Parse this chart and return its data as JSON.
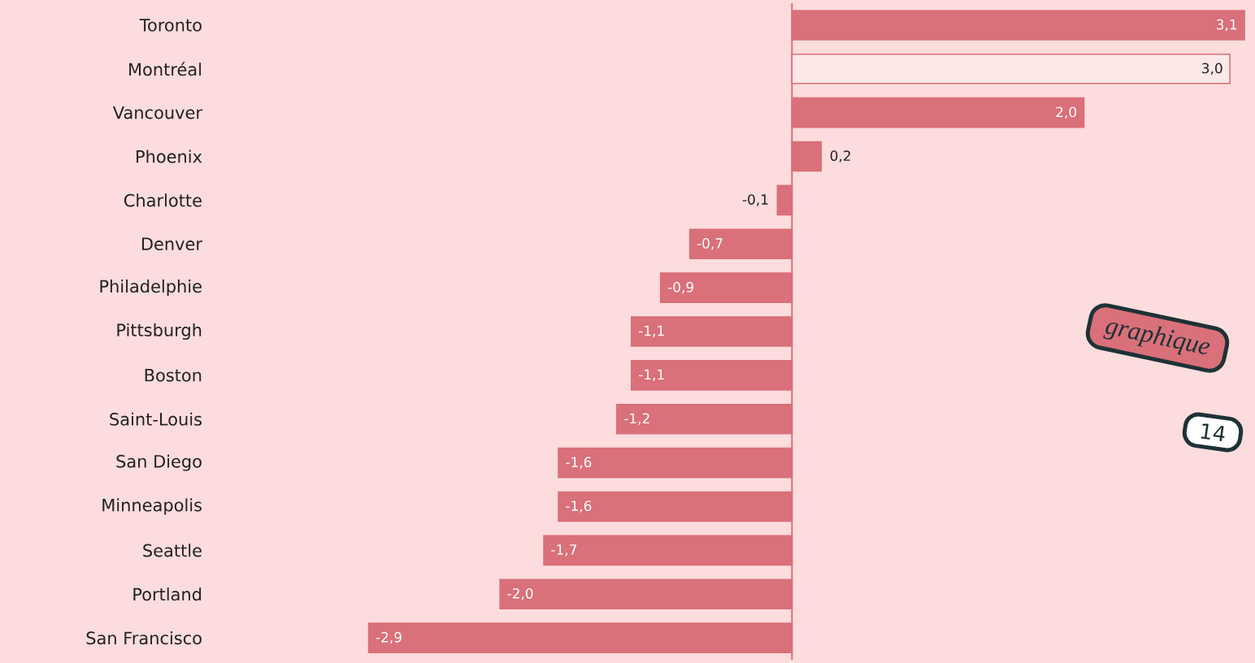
{
  "chart_data": {
    "type": "bar",
    "orientation": "horizontal",
    "tick_labels": "y",
    "color": "#d9707a",
    "categories": [
      "Toronto",
      "Montréal",
      "Vancouver",
      "Phoenix",
      "Charlotte",
      "Denver",
      "Philadelphie",
      "Pittsburgh",
      "Boston",
      "Saint-Louis",
      "San Diego",
      "Minneapolis",
      "Seattle",
      "Portland",
      "San Francisco"
    ],
    "values": [
      3.1,
      3.0,
      2.0,
      0.2,
      -0.1,
      -0.7,
      -0.9,
      -1.1,
      -1.1,
      -1.2,
      -1.6,
      -1.6,
      -1.7,
      -2.0,
      -2.9
    ],
    "value_labels": [
      "3,1",
      "3,0",
      "2,0",
      "0,2",
      "-0,1",
      "-0,7",
      "-0,9",
      "-1,1",
      "-1,1",
      "-1,2",
      "-1,6",
      "-1,6",
      "-1,7",
      "-2,0",
      "-2,9"
    ],
    "colors": [
      "#d9707a",
      "#fde8e8",
      "#d9707a",
      "#d9707a",
      "#d9707a",
      "#d9707a",
      "#d9707a",
      "#d9707a",
      "#d9707a",
      "#d9707a",
      "#d9707a",
      "#d9707a",
      "#d9707a",
      "#d9707a",
      "#d9707a"
    ],
    "ref_lines": [
      {
        "axis": "x",
        "value": 0
      }
    ],
    "annotations": [
      "graphique",
      "14"
    ]
  }
}
